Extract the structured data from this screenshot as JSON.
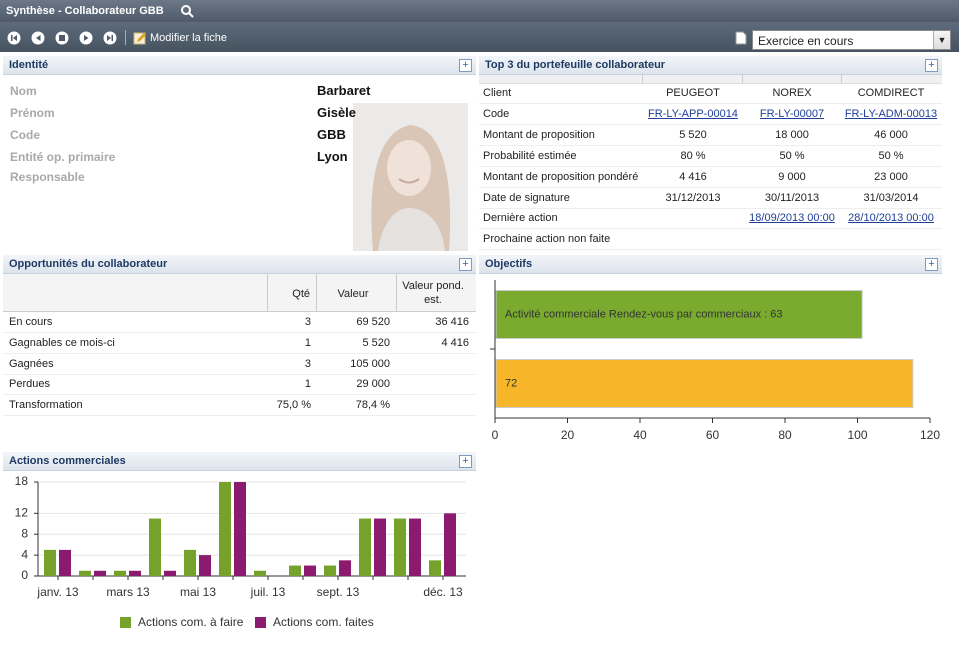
{
  "header": {
    "title": "Synthèse - Collaborateur GBB"
  },
  "toolbar": {
    "edit": "Modifier la fiche",
    "period": "Exercice en cours"
  },
  "identity": {
    "title": "Identité",
    "fields": [
      [
        "Nom",
        "Barbaret"
      ],
      [
        "Prénom",
        "Gisèle"
      ],
      [
        "Code",
        "GBB"
      ],
      [
        "Entité op. primaire",
        "Lyon"
      ],
      [
        "Responsable"
      ]
    ]
  },
  "top3": {
    "title": "Top 3 du portefeuille collaborateur",
    "rows": [
      [
        "Client",
        "PEUGEOT",
        "NOREX",
        "COMDIRECT"
      ],
      [
        "Code",
        "FR-LY-APP-00014",
        "FR-LY-00007",
        "FR-LY-ADM-00013"
      ],
      [
        "Montant de proposition",
        "5 520",
        "18 000",
        "46 000"
      ],
      [
        "Probabilité estimée",
        "80 %",
        "50 %",
        "50 %"
      ],
      [
        "Montant de proposition pondéré",
        "4 416",
        "9 000",
        "23 000"
      ],
      [
        "Date de signature",
        "31/12/2013",
        "30/11/2013",
        "31/03/2014"
      ],
      [
        "Dernière action",
        null,
        "18/09/2013 00:00",
        "28/10/2013 00:00"
      ],
      [
        "Prochaine action non faite"
      ]
    ]
  },
  "opportunities": {
    "title": "Opportunités du collaborateur",
    "columns": [
      "Qté",
      "Valeur",
      "Valeur pond. est."
    ],
    "rows": [
      [
        "En cours",
        "3",
        "69 520",
        "36 416"
      ],
      [
        "Gagnables ce mois-ci",
        "1",
        "5 520",
        "4 416"
      ],
      [
        "Gagnées",
        "3",
        "105 000"
      ],
      [
        "Perdues",
        "1",
        "29 000"
      ],
      [
        "Transformation",
        "75,0 %",
        "78,4 %"
      ]
    ]
  },
  "chart_data": [
    {
      "type": "bar",
      "orientation": "horizontal",
      "title": "Objectifs",
      "values": [
        101,
        115
      ],
      "colors": [
        "#7aab2e",
        "#f7b62a"
      ],
      "bar_texts": [
        "Activité commerciale Rendez-vous par commerciaux : 63",
        "72"
      ],
      "xlim": [
        0,
        120
      ],
      "xticks": [
        0,
        20,
        40,
        60,
        80,
        100,
        120
      ]
    },
    {
      "type": "bar",
      "title": "Actions commerciales",
      "categories": [
        "janv. 13",
        null,
        "mars 13",
        null,
        "mai 13",
        null,
        "juil. 13",
        null,
        "sept. 13",
        null,
        null,
        "déc. 13"
      ],
      "series": [
        {
          "name": "Actions com. à faire",
          "color": "#76a22c",
          "values": [
            5,
            1,
            1,
            11,
            5,
            18,
            1,
            2,
            2,
            11,
            11,
            3
          ]
        },
        {
          "name": "Actions com. faites",
          "color": "#8a1b6f",
          "values": [
            5,
            1,
            1,
            1,
            4,
            18,
            0,
            2,
            3,
            11,
            11,
            12
          ]
        }
      ],
      "ylim": [
        0,
        18
      ],
      "yticks": [
        0,
        4,
        8,
        12,
        18
      ],
      "grid": true,
      "legend": "bottom"
    }
  ]
}
